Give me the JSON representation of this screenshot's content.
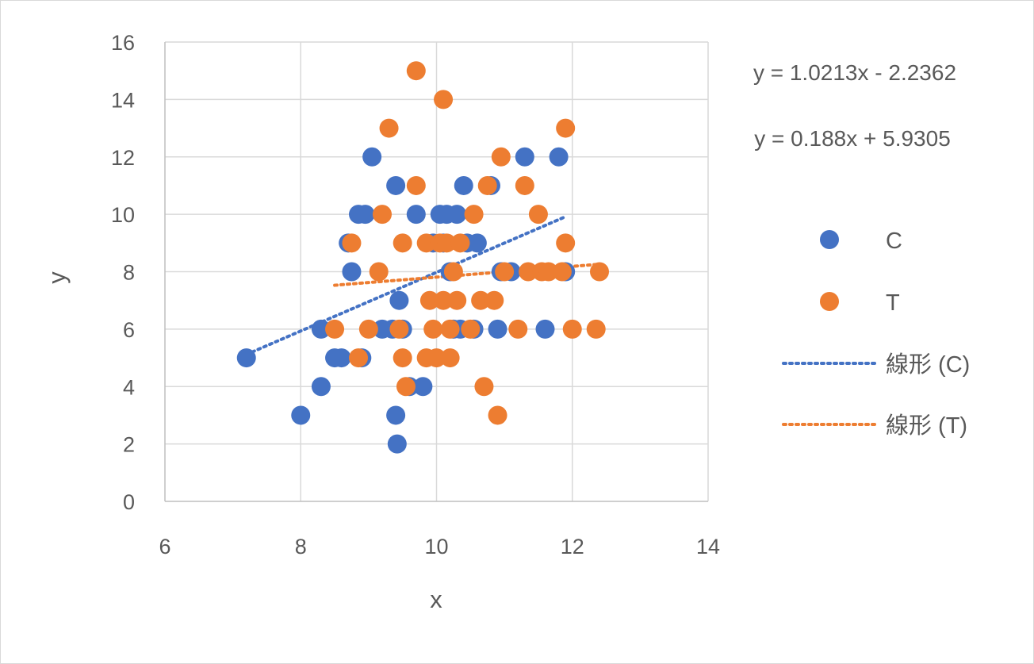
{
  "chart_data": {
    "type": "scatter",
    "xlabel": "x",
    "ylabel": "y",
    "xlim": [
      6,
      14
    ],
    "ylim": [
      0,
      16
    ],
    "xticks": [
      6,
      8,
      10,
      12,
      14
    ],
    "yticks": [
      0,
      2,
      4,
      6,
      8,
      10,
      12,
      14,
      16
    ],
    "grid": true,
    "legend_position": "right",
    "series": [
      {
        "name": "C",
        "color": "#4472C4",
        "points": [
          [
            7.2,
            5
          ],
          [
            8.0,
            3
          ],
          [
            8.3,
            4
          ],
          [
            8.3,
            6
          ],
          [
            8.5,
            5
          ],
          [
            8.6,
            5
          ],
          [
            8.7,
            9
          ],
          [
            8.75,
            8
          ],
          [
            8.85,
            10
          ],
          [
            8.95,
            10
          ],
          [
            8.9,
            5
          ],
          [
            9.05,
            12
          ],
          [
            9.2,
            6
          ],
          [
            9.35,
            6
          ],
          [
            9.4,
            11
          ],
          [
            9.4,
            3
          ],
          [
            9.42,
            2
          ],
          [
            9.45,
            7
          ],
          [
            9.5,
            6
          ],
          [
            9.6,
            4
          ],
          [
            9.7,
            10
          ],
          [
            9.8,
            4
          ],
          [
            9.95,
            9
          ],
          [
            10.05,
            10
          ],
          [
            10.1,
            9
          ],
          [
            10.15,
            10
          ],
          [
            10.2,
            8
          ],
          [
            10.25,
            6
          ],
          [
            10.3,
            10
          ],
          [
            10.35,
            6
          ],
          [
            10.4,
            11
          ],
          [
            10.45,
            9
          ],
          [
            10.55,
            6
          ],
          [
            10.6,
            9
          ],
          [
            10.8,
            11
          ],
          [
            10.9,
            6
          ],
          [
            10.95,
            8
          ],
          [
            11.1,
            8
          ],
          [
            11.3,
            12
          ],
          [
            11.6,
            6
          ],
          [
            11.8,
            12
          ],
          [
            11.9,
            8
          ]
        ]
      },
      {
        "name": "T",
        "color": "#ED7D31",
        "points": [
          [
            8.5,
            6
          ],
          [
            8.75,
            9
          ],
          [
            8.85,
            5
          ],
          [
            9.0,
            6
          ],
          [
            9.15,
            8
          ],
          [
            9.2,
            10
          ],
          [
            9.3,
            13
          ],
          [
            9.45,
            6
          ],
          [
            9.5,
            5
          ],
          [
            9.5,
            9
          ],
          [
            9.55,
            4
          ],
          [
            9.7,
            15
          ],
          [
            9.7,
            11
          ],
          [
            9.85,
            9
          ],
          [
            9.85,
            5
          ],
          [
            9.9,
            7
          ],
          [
            9.95,
            6
          ],
          [
            10.0,
            5
          ],
          [
            10.05,
            9
          ],
          [
            10.1,
            14
          ],
          [
            10.1,
            7
          ],
          [
            10.15,
            9
          ],
          [
            10.2,
            5
          ],
          [
            10.2,
            6
          ],
          [
            10.25,
            8
          ],
          [
            10.3,
            7
          ],
          [
            10.35,
            9
          ],
          [
            10.5,
            6
          ],
          [
            10.55,
            10
          ],
          [
            10.65,
            7
          ],
          [
            10.7,
            4
          ],
          [
            10.75,
            11
          ],
          [
            10.85,
            7
          ],
          [
            10.9,
            3
          ],
          [
            10.95,
            12
          ],
          [
            11.0,
            8
          ],
          [
            11.2,
            6
          ],
          [
            11.3,
            11
          ],
          [
            11.35,
            8
          ],
          [
            11.5,
            10
          ],
          [
            11.55,
            8
          ],
          [
            11.65,
            8
          ],
          [
            11.85,
            8
          ],
          [
            11.9,
            9
          ],
          [
            11.9,
            13
          ],
          [
            12.0,
            6
          ],
          [
            12.35,
            6
          ],
          [
            12.4,
            8
          ]
        ]
      }
    ],
    "trendlines": [
      {
        "name": "線形 (C)",
        "color": "#4472C4",
        "equation": "y = 1.0213x - 2.2362",
        "slope": 1.0213,
        "intercept": -2.2362,
        "x_range": [
          7.2,
          11.9
        ]
      },
      {
        "name": "線形 (T)",
        "color": "#ED7D31",
        "equation": "y = 0.188x + 5.9305",
        "slope": 0.188,
        "intercept": 5.9305,
        "x_range": [
          8.5,
          12.4
        ]
      }
    ]
  }
}
